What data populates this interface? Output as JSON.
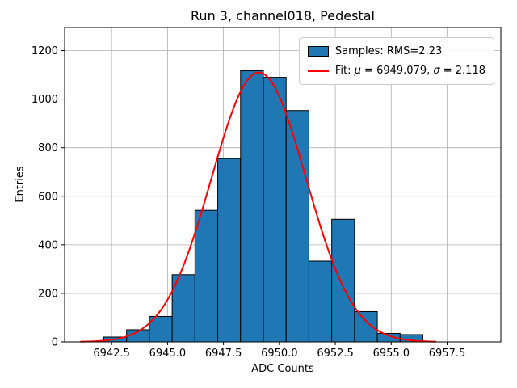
{
  "chart_data": {
    "type": "bar",
    "subtype": "histogram",
    "title": "Run 3, channel018, Pedestal",
    "xlabel": "ADC Counts",
    "ylabel": "Entries",
    "xlim": [
      6940.4,
      6959.9
    ],
    "ylim": [
      0,
      1295
    ],
    "grid": true,
    "x_ticks": {
      "values": [
        6942.5,
        6945.0,
        6947.5,
        6950.0,
        6952.5,
        6955.0,
        6957.5
      ],
      "labels": [
        "6942.5",
        "6945.0",
        "6947.5",
        "6950.0",
        "6952.5",
        "6955.0",
        "6957.5"
      ]
    },
    "y_ticks": {
      "values": [
        0,
        200,
        400,
        600,
        800,
        1000,
        1200
      ],
      "labels": [
        "0",
        "200",
        "400",
        "600",
        "800",
        "1000",
        "1200"
      ]
    },
    "bin_edges": [
      6942.15,
      6943.169,
      6944.188,
      6945.207,
      6946.226,
      6947.245,
      6948.264,
      6949.283,
      6950.302,
      6951.321,
      6952.34,
      6953.359,
      6954.378,
      6955.397,
      6956.416
    ],
    "counts": [
      20,
      50,
      105,
      277,
      542,
      755,
      1117,
      1090,
      953,
      333,
      505,
      125,
      35,
      30
    ],
    "fit": {
      "mu": 6949.079,
      "sigma": 2.118,
      "amplitude": 1110,
      "x_start": 6941.1,
      "x_end": 6957.0
    },
    "legend": {
      "position": "upper right",
      "samples_label": "Samples: RMS=2.23",
      "fit_label_parts": [
        {
          "text": "Fit: ",
          "italic": false
        },
        {
          "text": "μ",
          "italic": true
        },
        {
          "text": " = 6949.079, ",
          "italic": false
        },
        {
          "text": "σ",
          "italic": true
        },
        {
          "text": " = 2.118",
          "italic": false
        }
      ]
    },
    "colors": {
      "bar_fill": "#1f77b4",
      "bar_edge": "#000000",
      "fit_line": "#ff0000",
      "grid": "#b0b0b0",
      "spine": "#000000",
      "legend_border": "#cccccc",
      "text": "#000000"
    }
  }
}
